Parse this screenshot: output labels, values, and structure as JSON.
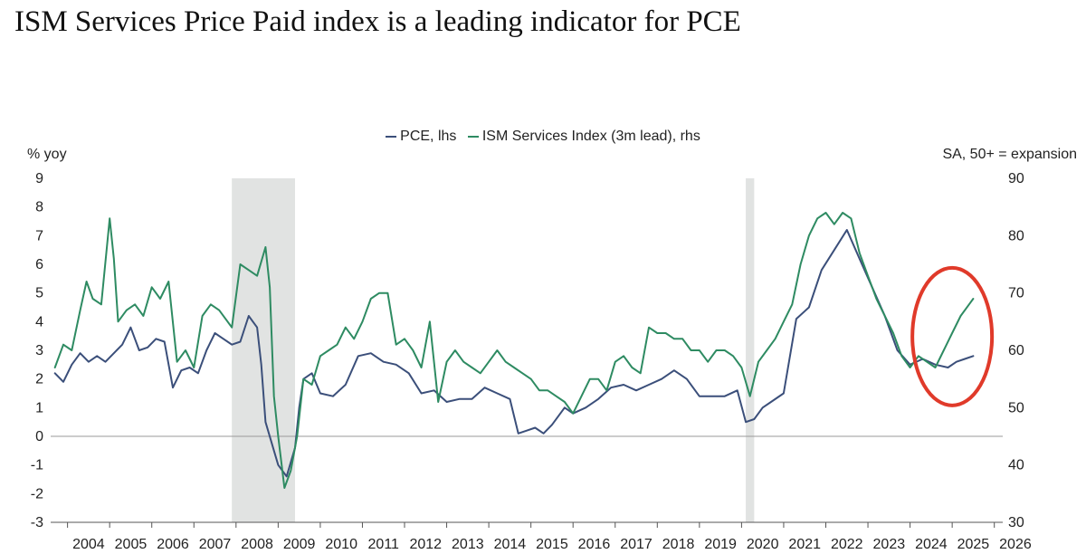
{
  "chart_data": {
    "type": "line",
    "title": "ISM Services Price Paid index is a leading indicator for PCE",
    "ylabel_left": "% yoy",
    "ylabel_right": "SA, 50+ = expansion",
    "ylim_left": [
      -3,
      9
    ],
    "ylim_right": [
      30,
      90
    ],
    "yticks_left": [
      -3,
      -2,
      -1,
      0,
      1,
      2,
      3,
      4,
      5,
      6,
      7,
      8,
      9
    ],
    "yticks_right": [
      30,
      40,
      50,
      60,
      70,
      80,
      90
    ],
    "xlim": [
      2003.6,
      2026.2
    ],
    "xticks": [
      "2004",
      "2005",
      "2006",
      "2007",
      "2008",
      "2009",
      "2010",
      "2011",
      "2012",
      "2013",
      "2014",
      "2015",
      "2016",
      "2017",
      "2018",
      "2019",
      "2020",
      "2021",
      "2022",
      "2023",
      "2024",
      "2025",
      "2026"
    ],
    "recessions": [
      [
        2007.9,
        2009.4
      ],
      [
        2020.1,
        2020.3
      ]
    ],
    "highlight": {
      "shape": "ellipse",
      "center": [
        2025.0,
        4.9
      ],
      "note": "red circle around latest readings"
    },
    "series": [
      {
        "name": "PCE, lhs",
        "axis": "left",
        "color": "#3b4f7a",
        "x": [
          2003.7,
          2003.9,
          2004.1,
          2004.3,
          2004.5,
          2004.7,
          2004.9,
          2005.1,
          2005.3,
          2005.5,
          2005.7,
          2005.9,
          2006.1,
          2006.3,
          2006.5,
          2006.7,
          2006.9,
          2007.1,
          2007.3,
          2007.5,
          2007.7,
          2007.9,
          2008.1,
          2008.3,
          2008.5,
          2008.6,
          2008.7,
          2008.9,
          2009.0,
          2009.2,
          2009.4,
          2009.5,
          2009.6,
          2009.8,
          2010.0,
          2010.3,
          2010.6,
          2010.9,
          2011.2,
          2011.5,
          2011.8,
          2012.1,
          2012.4,
          2012.7,
          2013.0,
          2013.3,
          2013.6,
          2013.9,
          2014.2,
          2014.5,
          2014.7,
          2014.9,
          2015.1,
          2015.3,
          2015.5,
          2015.8,
          2016.0,
          2016.3,
          2016.6,
          2016.9,
          2017.2,
          2017.5,
          2017.8,
          2018.1,
          2018.4,
          2018.7,
          2019.0,
          2019.3,
          2019.6,
          2019.9,
          2020.1,
          2020.3,
          2020.5,
          2020.7,
          2021.0,
          2021.3,
          2021.6,
          2021.9,
          2022.2,
          2022.5,
          2022.8,
          2023.1,
          2023.4,
          2023.7,
          2024.0,
          2024.3,
          2024.6,
          2024.9,
          2025.1,
          2025.3,
          2025.5
        ],
        "values": [
          2.2,
          1.9,
          2.5,
          2.9,
          2.6,
          2.8,
          2.6,
          2.9,
          3.2,
          3.8,
          3.0,
          3.1,
          3.4,
          3.3,
          1.7,
          2.3,
          2.4,
          2.2,
          3.0,
          3.6,
          3.4,
          3.2,
          3.3,
          4.2,
          3.8,
          2.5,
          0.5,
          -0.5,
          -1.0,
          -1.4,
          -0.4,
          1.0,
          2.0,
          2.2,
          1.5,
          1.4,
          1.8,
          2.8,
          2.9,
          2.6,
          2.5,
          2.2,
          1.5,
          1.6,
          1.2,
          1.3,
          1.3,
          1.7,
          1.5,
          1.3,
          0.1,
          0.2,
          0.3,
          0.1,
          0.4,
          1.0,
          0.8,
          1.0,
          1.3,
          1.7,
          1.8,
          1.6,
          1.8,
          2.0,
          2.3,
          2.0,
          1.4,
          1.4,
          1.4,
          1.6,
          0.5,
          0.6,
          1.0,
          1.2,
          1.5,
          4.1,
          4.5,
          5.8,
          6.5,
          7.2,
          6.2,
          5.2,
          4.2,
          3.0,
          2.5,
          2.7,
          2.5,
          2.4,
          2.6,
          2.7,
          2.8
        ]
      },
      {
        "name": "ISM Services Index (3m lead), rhs",
        "axis": "right",
        "color": "#2e8b62",
        "x": [
          2003.7,
          2003.9,
          2004.1,
          2004.3,
          2004.45,
          2004.6,
          2004.8,
          2005.0,
          2005.1,
          2005.2,
          2005.4,
          2005.6,
          2005.8,
          2006.0,
          2006.2,
          2006.4,
          2006.6,
          2006.8,
          2007.0,
          2007.2,
          2007.4,
          2007.6,
          2007.9,
          2008.1,
          2008.3,
          2008.5,
          2008.7,
          2008.8,
          2008.9,
          2009.0,
          2009.15,
          2009.3,
          2009.45,
          2009.6,
          2009.8,
          2010.0,
          2010.2,
          2010.4,
          2010.6,
          2010.8,
          2011.0,
          2011.2,
          2011.4,
          2011.6,
          2011.8,
          2012.0,
          2012.2,
          2012.4,
          2012.6,
          2012.8,
          2013.0,
          2013.2,
          2013.4,
          2013.6,
          2013.8,
          2014.0,
          2014.2,
          2014.4,
          2014.6,
          2014.8,
          2015.0,
          2015.2,
          2015.4,
          2015.6,
          2015.8,
          2016.0,
          2016.2,
          2016.4,
          2016.6,
          2016.8,
          2017.0,
          2017.2,
          2017.4,
          2017.6,
          2017.8,
          2018.0,
          2018.2,
          2018.4,
          2018.6,
          2018.8,
          2019.0,
          2019.2,
          2019.4,
          2019.6,
          2019.8,
          2020.0,
          2020.2,
          2020.4,
          2020.6,
          2020.8,
          2021.0,
          2021.2,
          2021.4,
          2021.6,
          2021.8,
          2022.0,
          2022.2,
          2022.4,
          2022.6,
          2022.8,
          2023.0,
          2023.2,
          2023.4,
          2023.6,
          2023.8,
          2024.0,
          2024.2,
          2024.4,
          2024.6,
          2024.8,
          2025.0,
          2025.2,
          2025.4,
          2025.5
        ],
        "values": [
          57,
          61,
          60,
          67,
          72,
          69,
          68,
          83,
          76,
          65,
          67,
          68,
          66,
          71,
          69,
          72,
          58,
          60,
          57,
          66,
          68,
          67,
          64,
          75,
          74,
          73,
          78,
          71,
          52,
          45,
          36,
          39,
          45,
          55,
          54,
          59,
          60,
          61,
          64,
          62,
          65,
          69,
          70,
          70,
          61,
          62,
          60,
          57,
          65,
          51,
          58,
          60,
          58,
          57,
          56,
          58,
          60,
          58,
          57,
          56,
          55,
          53,
          53,
          52,
          51,
          49,
          52,
          55,
          55,
          53,
          58,
          59,
          57,
          56,
          64,
          63,
          63,
          62,
          62,
          60,
          60,
          58,
          60,
          60,
          59,
          57,
          52,
          58,
          60,
          62,
          65,
          68,
          75,
          80,
          83,
          84,
          82,
          84,
          83,
          77,
          73,
          69,
          66,
          63,
          59,
          57,
          59,
          58,
          57,
          60,
          63,
          66,
          68,
          69
        ]
      }
    ]
  }
}
